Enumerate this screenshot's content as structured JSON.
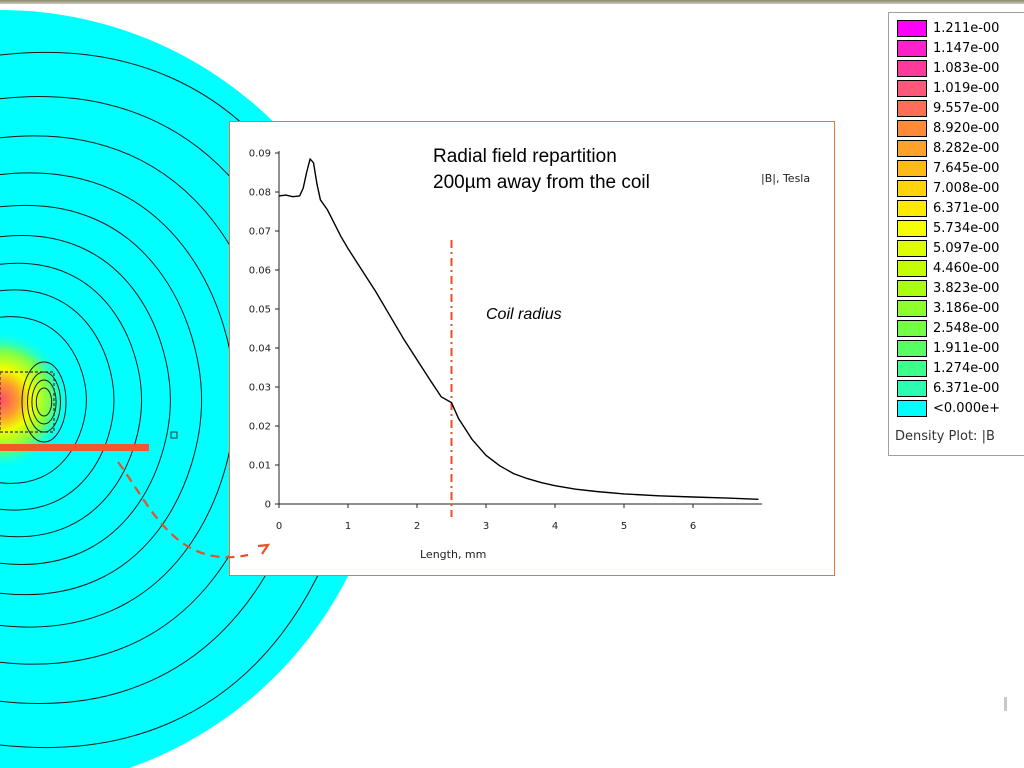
{
  "chart_data": {
    "type": "line",
    "title": "Radial field repartition\n200µm away from the coil",
    "title_lines": [
      "Radial field repartition",
      "200µm away from the coil"
    ],
    "ylabel": "|B|, Tesla",
    "xlabel": "Length, mm",
    "xlim": [
      0,
      7
    ],
    "ylim": [
      0,
      0.09
    ],
    "x_ticks": [
      0,
      1,
      2,
      3,
      4,
      5,
      6
    ],
    "x_tick_labels": [
      "0",
      "1",
      "2",
      "3",
      "4",
      "5",
      "6"
    ],
    "y_ticks": [
      0,
      0.01,
      0.02,
      0.03,
      0.04,
      0.05,
      0.06,
      0.07,
      0.08,
      0.09
    ],
    "y_tick_labels": [
      "0",
      "0.01",
      "0.02",
      "0.03",
      "0.04",
      "0.05",
      "0.06",
      "0.07",
      "0.08",
      "0.09"
    ],
    "grid": false,
    "series": [
      {
        "color": "#000000",
        "x": [
          0,
          0.1,
          0.2,
          0.3,
          0.35,
          0.4,
          0.45,
          0.5,
          0.55,
          0.6,
          0.7,
          0.8,
          0.9,
          1.0,
          1.2,
          1.4,
          1.6,
          1.8,
          2.0,
          2.2,
          2.35,
          2.5,
          2.6,
          2.8,
          3.0,
          3.2,
          3.4,
          3.6,
          3.8,
          4.0,
          4.3,
          4.6,
          5.0,
          5.5,
          6.0,
          6.5,
          6.95
        ],
        "y": [
          0.079,
          0.0792,
          0.0788,
          0.079,
          0.081,
          0.085,
          0.0885,
          0.0875,
          0.082,
          0.078,
          0.0755,
          0.072,
          0.0685,
          0.0655,
          0.06,
          0.0545,
          0.0485,
          0.0425,
          0.037,
          0.0315,
          0.0275,
          0.026,
          0.022,
          0.0165,
          0.0125,
          0.0098,
          0.0078,
          0.0065,
          0.0055,
          0.0047,
          0.0038,
          0.0032,
          0.0026,
          0.0021,
          0.0018,
          0.0015,
          0.0012
        ]
      }
    ],
    "annotations": [
      {
        "text": "Coil radius",
        "x": 2.5,
        "style": "dash-dot vertical line",
        "color": "#e8502a"
      }
    ]
  },
  "legend": {
    "caption": "Density Plot: |B",
    "entries": [
      {
        "label": "1.211e-00",
        "color": "#ff00ff"
      },
      {
        "label": "1.147e-00",
        "color": "#ff22cc"
      },
      {
        "label": "1.083e-00",
        "color": "#ff3a9a"
      },
      {
        "label": "1.019e-00",
        "color": "#ff5878"
      },
      {
        "label": "9.557e-00",
        "color": "#ff6e58"
      },
      {
        "label": "8.920e-00",
        "color": "#ff8a3a"
      },
      {
        "label": "8.282e-00",
        "color": "#ffa22a"
      },
      {
        "label": "7.645e-00",
        "color": "#ffba1a"
      },
      {
        "label": "7.008e-00",
        "color": "#ffd40a"
      },
      {
        "label": "6.371e-00",
        "color": "#ffea00"
      },
      {
        "label": "5.734e-00",
        "color": "#f6ff00"
      },
      {
        "label": "5.097e-00",
        "color": "#ddff00"
      },
      {
        "label": "4.460e-00",
        "color": "#c4ff00"
      },
      {
        "label": "3.823e-00",
        "color": "#aaff10"
      },
      {
        "label": "3.186e-00",
        "color": "#8eff2a"
      },
      {
        "label": "2.548e-00",
        "color": "#72ff44"
      },
      {
        "label": "1.911e-00",
        "color": "#56ff62"
      },
      {
        "label": "1.274e-00",
        "color": "#3eff8a"
      },
      {
        "label": "6.371e-00",
        "color": "#2affb4"
      },
      {
        "label": "<0.000e+",
        "color": "#00ffff"
      }
    ]
  },
  "colors": {
    "field_background": "#00ffff",
    "accent": "#e8502a"
  }
}
